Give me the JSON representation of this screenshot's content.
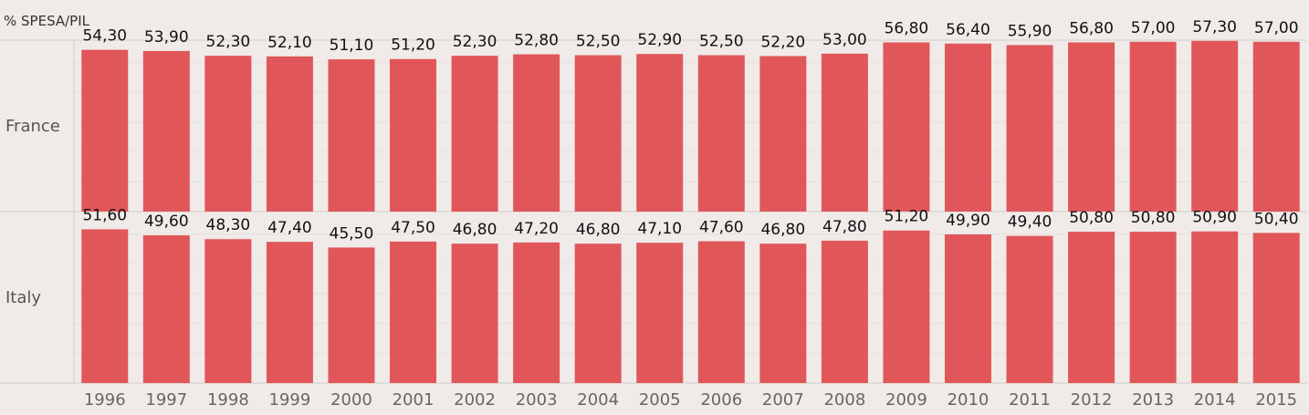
{
  "title": "% SPESA/PIL",
  "colors": {
    "bar": "#e15759",
    "background": "#f0ebe9",
    "grid": "#e6dfdc",
    "divider": "#d3ccc9"
  },
  "chart_data": {
    "type": "bar",
    "title": "% SPESA/PIL",
    "xlabel": "",
    "ylabel": "",
    "categories": [
      "1996",
      "1997",
      "1998",
      "1999",
      "2000",
      "2001",
      "2002",
      "2003",
      "2004",
      "2005",
      "2006",
      "2007",
      "2008",
      "2009",
      "2010",
      "2011",
      "2012",
      "2013",
      "2014",
      "2015"
    ],
    "ylim": [
      0,
      60
    ],
    "grid": true,
    "series": [
      {
        "name": "France",
        "values": [
          54.3,
          53.9,
          52.3,
          52.1,
          51.1,
          51.2,
          52.3,
          52.8,
          52.5,
          52.9,
          52.5,
          52.2,
          53.0,
          56.8,
          56.4,
          55.9,
          56.8,
          57.0,
          57.3,
          57.0
        ],
        "labels": [
          "54,30",
          "53,90",
          "52,30",
          "52,10",
          "51,10",
          "51,20",
          "52,30",
          "52,80",
          "52,50",
          "52,90",
          "52,50",
          "52,20",
          "53,00",
          "56,80",
          "56,40",
          "55,90",
          "56,80",
          "57,00",
          "57,30",
          "57,00"
        ]
      },
      {
        "name": "Italy",
        "values": [
          51.6,
          49.6,
          48.3,
          47.4,
          45.5,
          47.5,
          46.8,
          47.2,
          46.8,
          47.1,
          47.6,
          46.8,
          47.8,
          51.2,
          49.9,
          49.4,
          50.8,
          50.8,
          50.9,
          50.4
        ],
        "labels": [
          "51,60",
          "49,60",
          "48,30",
          "47,40",
          "45,50",
          "47,50",
          "46,80",
          "47,20",
          "46,80",
          "47,10",
          "47,60",
          "46,80",
          "47,80",
          "51,20",
          "49,90",
          "49,40",
          "50,80",
          "50,80",
          "50,90",
          "50,40"
        ]
      }
    ]
  }
}
